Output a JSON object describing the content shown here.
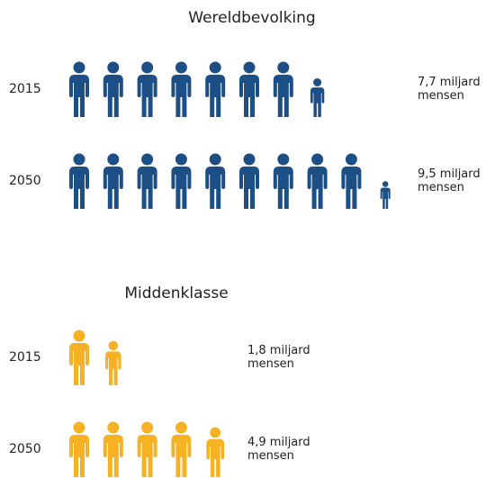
{
  "chart_data": [
    {
      "type": "pictogram",
      "title": "Wereldbevolking",
      "categories": [
        "2015",
        "2050"
      ],
      "values": [
        7.7,
        9.5
      ],
      "value_labels": [
        "7,7 miljard mensen",
        "9,5 miljard mensen"
      ],
      "color": "#1d4f87"
    },
    {
      "type": "pictogram",
      "title": "Middenklasse",
      "categories": [
        "2015",
        "2050"
      ],
      "values": [
        1.8,
        4.9
      ],
      "value_labels": [
        "1,8 miljard mensen",
        "4,9 miljard mensen"
      ],
      "color": "#f6b222"
    }
  ]
}
